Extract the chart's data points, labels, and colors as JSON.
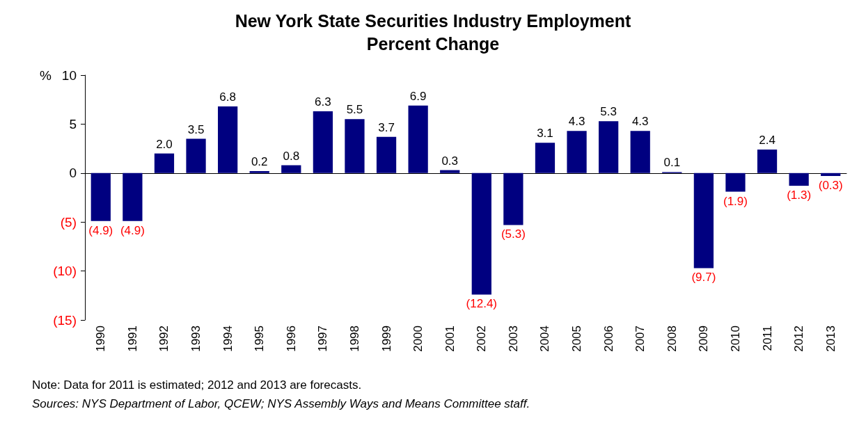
{
  "chart_data": {
    "type": "bar",
    "title": "New York State Securities Industry Employment",
    "subtitle": "Percent Change",
    "ylabel": "%",
    "categories": [
      "1990",
      "1991",
      "1992",
      "1993",
      "1994",
      "1995",
      "1996",
      "1997",
      "1998",
      "1999",
      "2000",
      "2001",
      "2002",
      "2003",
      "2004",
      "2005",
      "2006",
      "2007",
      "2008",
      "2009",
      "2010",
      "2011",
      "2012",
      "2013"
    ],
    "values": [
      -4.9,
      -4.9,
      2.0,
      3.5,
      6.8,
      0.2,
      0.8,
      6.3,
      5.5,
      3.7,
      6.9,
      0.3,
      -12.4,
      -5.3,
      3.1,
      4.3,
      5.3,
      4.3,
      0.1,
      -9.7,
      -1.9,
      2.4,
      -1.3,
      -0.3
    ],
    "value_labels": [
      "(4.9)",
      "(4.9)",
      "2.0",
      "3.5",
      "6.8",
      "0.2",
      "0.8",
      "6.3",
      "5.5",
      "3.7",
      "6.9",
      "0.3",
      "(12.4)",
      "(5.3)",
      "3.1",
      "4.3",
      "5.3",
      "4.3",
      "0.1",
      "(9.7)",
      "(1.9)",
      "2.4",
      "(1.3)",
      "(0.3)"
    ],
    "color": "#000080",
    "ylim": [
      -15,
      10
    ],
    "yticks": [
      10,
      5,
      0,
      {
        "value": -5,
        "label": "(5)"
      },
      {
        "value": -10,
        "label": "(10)"
      },
      {
        "value": -15,
        "label": "(15)"
      }
    ],
    "annotations": [
      "Note: Data for 2011 is estimated; 2012 and 2013 are forecasts.",
      "Sources: NYS Department of Labor, QCEW; NYS Assembly Ways and Means Committee staff."
    ]
  }
}
